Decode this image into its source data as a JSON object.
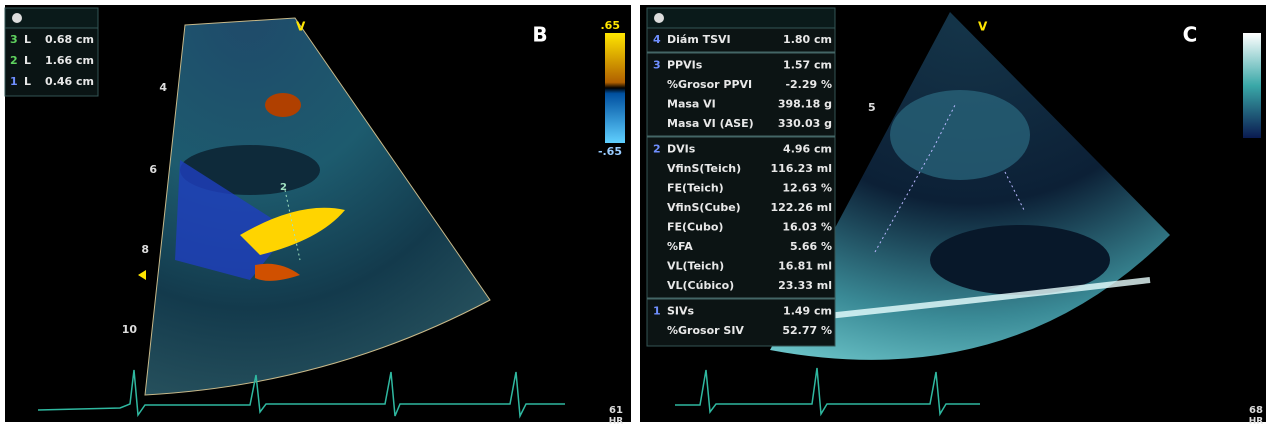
{
  "panel_b": {
    "letter": "B",
    "view": "V",
    "measurements": [
      {
        "index": "3",
        "label": "L",
        "value": "0.68 cm"
      },
      {
        "index": "2",
        "label": "L",
        "value": "1.66 cm"
      },
      {
        "index": "1",
        "label": "L",
        "value": "0.46 cm"
      }
    ],
    "depth_labels": [
      "4",
      "6",
      "8",
      "10"
    ],
    "scale_top": ".65",
    "scale_bottom": "-.65",
    "marker": "2",
    "heart_rate": "61",
    "heart_rate_unit": "HR"
  },
  "panel_c": {
    "letter": "C",
    "view": "V",
    "depth_label": "5",
    "groups": [
      {
        "index": "4",
        "rows": [
          {
            "label": "Diám TSVI",
            "value": "1.80 cm"
          }
        ]
      },
      {
        "index": "3",
        "rows": [
          {
            "label": "PPVIs",
            "value": "1.57 cm"
          },
          {
            "label": "%Grosor PPVI",
            "value": "-2.29 %"
          },
          {
            "label": "Masa VI",
            "value": "398.18 g"
          },
          {
            "label": "Masa VI (ASE)",
            "value": "330.03 g"
          }
        ]
      },
      {
        "index": "2",
        "rows": [
          {
            "label": "DVIs",
            "value": "4.96 cm"
          },
          {
            "label": "VfinS(Teich)",
            "value": "116.23 ml"
          },
          {
            "label": "FE(Teich)",
            "value": "12.63 %"
          },
          {
            "label": "VfinS(Cube)",
            "value": "122.26 ml"
          },
          {
            "label": "FE(Cubo)",
            "value": "16.03 %"
          },
          {
            "label": "%FA",
            "value": "5.66 %"
          },
          {
            "label": "VL(Teich)",
            "value": "16.81 ml"
          },
          {
            "label": "VL(Cúbico)",
            "value": "23.33 ml"
          }
        ]
      },
      {
        "index": "1",
        "rows": [
          {
            "label": "SIVs",
            "value": "1.49 cm"
          },
          {
            "label": "%Grosor SIV",
            "value": "52.77 %"
          }
        ]
      }
    ],
    "heart_rate": "68",
    "heart_rate_unit": "HR"
  }
}
